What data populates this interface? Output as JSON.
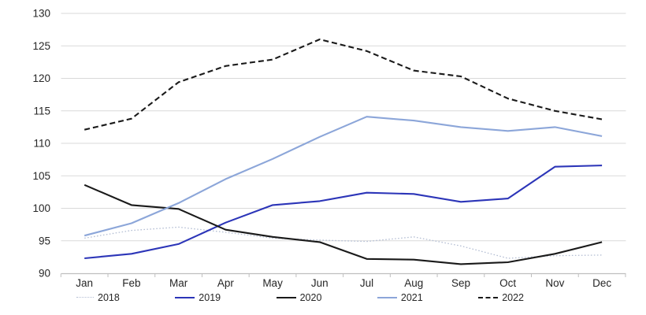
{
  "chart_data": {
    "type": "line",
    "title": "",
    "xlabel": "",
    "ylabel": "",
    "x_categories": [
      "Jan",
      "Feb",
      "Mar",
      "Apr",
      "May",
      "Jun",
      "Jul",
      "Aug",
      "Sep",
      "Oct",
      "Nov",
      "Dec"
    ],
    "y_axis": {
      "min": 90,
      "max": 130,
      "step": 5,
      "tick_labels": [
        "90",
        "95",
        "100",
        "105",
        "110",
        "115",
        "120",
        "125",
        "130"
      ]
    },
    "grid": true,
    "legend_position": "bottom",
    "colors": {
      "gridline": "#d9d9d9",
      "axis_line": "#bfbfbf",
      "label_text": "#262626",
      "series_2018": "#b5bfd4",
      "series_2019": "#2c35b8",
      "series_2020": "#1a1a1a",
      "series_2021": "#8ca6d9",
      "series_2022": "#1a1a1a"
    },
    "series": [
      {
        "name": "2018",
        "color": "#b5bfd4",
        "style": "dotted",
        "values": [
          95.4,
          96.6,
          97.1,
          96.3,
          95.4,
          95.1,
          94.9,
          95.6,
          94.2,
          92.3,
          92.7,
          92.8
        ]
      },
      {
        "name": "2019",
        "color": "#2c35b8",
        "style": "solid",
        "values": [
          92.3,
          93.0,
          94.5,
          97.8,
          100.5,
          101.1,
          102.4,
          102.2,
          101.0,
          101.5,
          106.4,
          106.6
        ]
      },
      {
        "name": "2020",
        "color": "#1a1a1a",
        "style": "solid",
        "values": [
          103.6,
          100.5,
          99.9,
          96.7,
          95.6,
          94.8,
          92.2,
          92.1,
          91.4,
          91.7,
          93.0,
          94.8
        ]
      },
      {
        "name": "2021",
        "color": "#8ca6d9",
        "style": "solid",
        "values": [
          95.8,
          97.7,
          100.8,
          104.5,
          107.6,
          111.0,
          114.1,
          113.5,
          112.5,
          111.9,
          112.5,
          111.1
        ]
      },
      {
        "name": "2022",
        "color": "#1a1a1a",
        "style": "dashed",
        "values": [
          112.1,
          113.8,
          119.4,
          121.9,
          122.9,
          126.0,
          124.2,
          121.2,
          120.3,
          116.9,
          115.0,
          113.7
        ]
      }
    ]
  }
}
